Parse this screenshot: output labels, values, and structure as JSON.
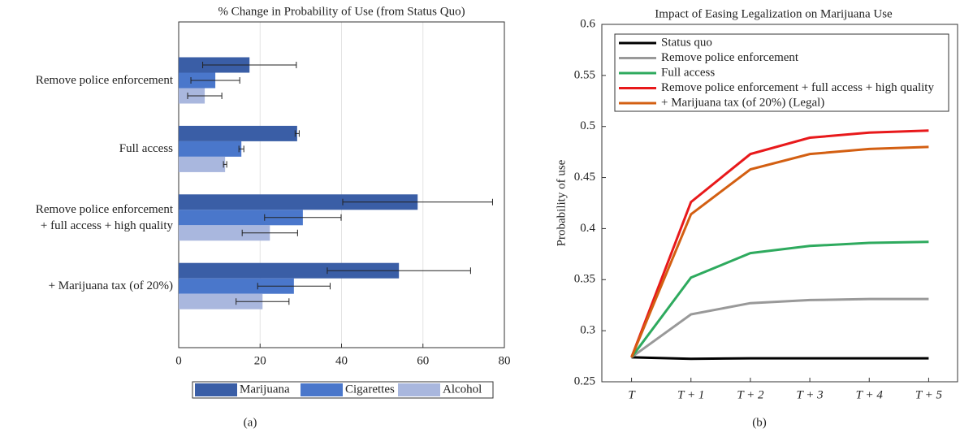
{
  "chart_data": [
    {
      "type": "bar",
      "orientation": "horizontal",
      "title": "% Change in Probability of Use (from Status Quo)",
      "caption": "(a)",
      "categories": [
        "Remove police enforcement",
        "Full access",
        "Remove police enforcement\n+ full access + high quality",
        "+ Marijuana tax (of 20%)"
      ],
      "series": [
        {
          "name": "Marijuana",
          "color": "#3a5ea6",
          "values": [
            17.4,
            29.1,
            58.7,
            54.1
          ],
          "errors": [
            11.5,
            0.5,
            18.4,
            17.6
          ]
        },
        {
          "name": "Cigarettes",
          "color": "#4a77cb",
          "values": [
            9,
            15.4,
            30.5,
            28.3
          ],
          "errors": [
            6,
            0.6,
            9.4,
            8.9
          ]
        },
        {
          "name": "Alcohol",
          "color": "#a9b7de",
          "values": [
            6.4,
            11.4,
            22.4,
            20.6
          ],
          "errors": [
            4.2,
            0.4,
            6.8,
            6.5
          ]
        }
      ],
      "xlim": [
        0,
        80
      ],
      "xticks": [
        0,
        20,
        40,
        60,
        80
      ],
      "grid": true,
      "legend": "bottom"
    },
    {
      "type": "line",
      "title": "Impact of Easing Legalization on Marijuana Use",
      "caption": "(b)",
      "y_label": "Probability of use",
      "categories": [
        "T",
        "T + 1",
        "T + 2",
        "T + 3",
        "T + 4",
        "T + 5"
      ],
      "series": [
        {
          "name": "Status quo",
          "color": "#000000",
          "values": [
            0.274,
            0.2725,
            0.273,
            0.273,
            0.273,
            0.273
          ]
        },
        {
          "name": "Remove police enforcement",
          "color": "#999999",
          "values": [
            0.274,
            0.316,
            0.327,
            0.33,
            0.331,
            0.331
          ]
        },
        {
          "name": "Full access",
          "color": "#2eaa5e",
          "values": [
            0.274,
            0.352,
            0.376,
            0.383,
            0.386,
            0.387
          ]
        },
        {
          "name": "Remove police enforcement + full access + high quality",
          "color": "#e8191b",
          "values": [
            0.274,
            0.426,
            0.473,
            0.489,
            0.494,
            0.496
          ]
        },
        {
          "name": "+ Marijuana tax (of 20%) (Legal)",
          "color": "#d35f12",
          "values": [
            0.274,
            0.414,
            0.458,
            0.473,
            0.478,
            0.48
          ]
        }
      ],
      "ylim": [
        0.25,
        0.6
      ],
      "yticks": [
        0.25,
        0.3,
        0.35,
        0.4,
        0.45,
        0.5,
        0.55,
        0.6
      ],
      "legend": "upper left"
    }
  ]
}
